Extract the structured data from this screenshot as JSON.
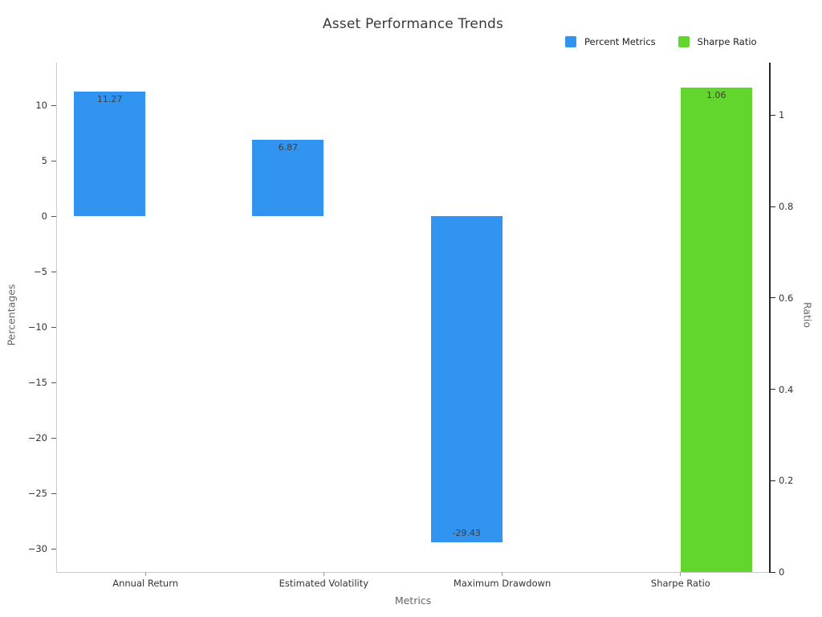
{
  "title": "Asset Performance Trends",
  "legend": {
    "items": [
      {
        "label": "Percent Metrics",
        "color": "#3194f0"
      },
      {
        "label": "Sharpe Ratio",
        "color": "#63d62d"
      }
    ]
  },
  "chart_data": {
    "type": "bar",
    "title": "Asset Performance Trends",
    "xlabel": "Metrics",
    "ylabel_left": "Percentages",
    "ylabel_right": "Ratio",
    "categories": [
      "Annual Return",
      "Estimated Volatility",
      "Maximum Drawdown",
      "Sharpe Ratio"
    ],
    "series": [
      {
        "name": "Percent Metrics",
        "axis": "left",
        "color": "#3194f0",
        "values": [
          11.27,
          6.87,
          -29.43,
          null
        ]
      },
      {
        "name": "Sharpe Ratio",
        "axis": "right",
        "color": "#63d62d",
        "values": [
          null,
          null,
          null,
          1.06
        ]
      }
    ],
    "bar_value_labels": [
      "11.27",
      "6.87",
      "-29.43",
      "1.06"
    ],
    "ylim_left": [
      -32.1,
      13.85
    ],
    "ylim_right": [
      0,
      1.115
    ],
    "yticks_left": [
      10,
      5,
      0,
      -5,
      -10,
      -15,
      -20,
      -25,
      -30
    ],
    "ytick_labels_left": [
      "10",
      "5",
      "0",
      "−5",
      "−10",
      "−15",
      "−20",
      "−25",
      "−30"
    ],
    "yticks_right": [
      1,
      0.8,
      0.6,
      0.4,
      0.2,
      0
    ],
    "ytick_labels_right": [
      "1",
      "0.8",
      "0.6",
      "0.4",
      "0.2",
      "0"
    ],
    "grid": false,
    "legend_position": "top-right",
    "background": "#ffffff"
  }
}
